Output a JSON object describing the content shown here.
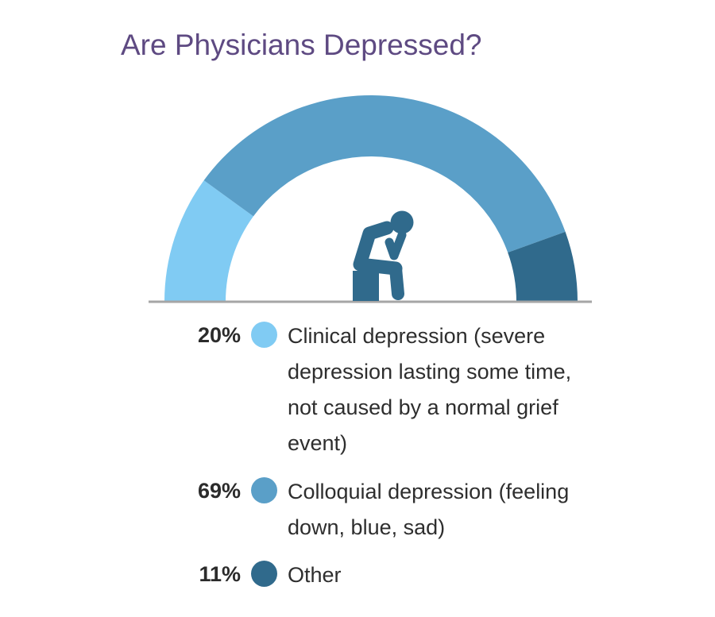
{
  "chart_data": {
    "type": "pie",
    "variant": "semicircle-gauge",
    "title": "Are Physicians Depressed?",
    "series": [
      {
        "label": "Clinical depression (severe depression lasting some time, not caused by a normal grief event)",
        "value": 20,
        "value_label": "20%",
        "color": "#80cbf3"
      },
      {
        "label": "Colloquial depression (feeling down, blue, sad)",
        "value": 69,
        "value_label": "69%",
        "color": "#5a9fc8"
      },
      {
        "label": "Other",
        "value": 11,
        "value_label": "11%",
        "color": "#306a8c"
      }
    ],
    "icon": "depressed-person-icon",
    "icon_color": "#306a8c",
    "baseline_color": "#a6a6a6",
    "title_color": "#5e4a82"
  }
}
